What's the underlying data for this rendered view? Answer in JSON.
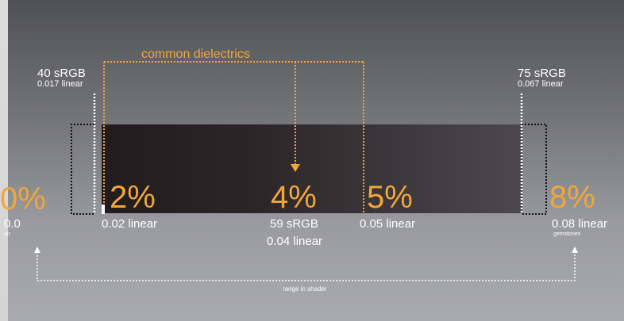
{
  "title": "common dielectrics",
  "markers": {
    "left_top": {
      "srgb": "40 sRGB",
      "linear": "0.017 linear"
    },
    "right_top": {
      "srgb": "75 sRGB",
      "linear": "0.067 linear"
    }
  },
  "percentages": {
    "p0": "0%",
    "p2": "2%",
    "p4": "4%",
    "p5": "5%",
    "p8": "8%"
  },
  "values": {
    "v0": "0.0",
    "v0_note": "air",
    "v2": "0.02 linear",
    "v4_srgb": "59 sRGB",
    "v4_linear": "0.04 linear",
    "v5": "0.05 linear",
    "v8": "0.08 linear",
    "v8_note": "gemstones"
  },
  "range_label": "range in shader",
  "colors": {
    "accent_orange": "#f2a63a",
    "text_white": "#ffffff"
  }
}
